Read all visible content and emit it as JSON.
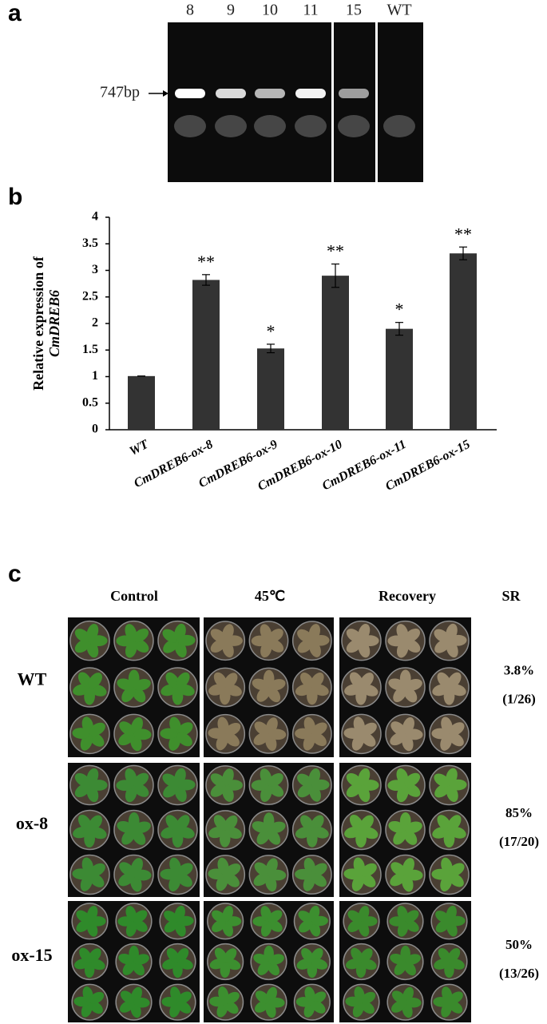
{
  "panel_a": {
    "label": "a",
    "lanes": [
      "8",
      "9",
      "10",
      "11",
      "15",
      "WT"
    ],
    "marker": "747bp"
  },
  "chart_data": {
    "type": "bar",
    "panel_label": "b",
    "ylabel": [
      "Relative expression of",
      "CmDREB6"
    ],
    "categories": [
      "WT",
      "CmDREB6-ox-8",
      "CmDREB6-ox-9",
      "CmDREB6-ox-10",
      "CmDREB6-ox-11",
      "CmDREB6-ox-15"
    ],
    "values": [
      1.01,
      2.82,
      1.53,
      2.9,
      1.9,
      3.32
    ],
    "errors": [
      0,
      0.1,
      0.08,
      0.22,
      0.12,
      0.12
    ],
    "value_annotations": [
      null,
      "**",
      "*",
      "**",
      "*",
      "**"
    ],
    "color": "#333333",
    "ylim": [
      0,
      4
    ],
    "yticks": [
      0,
      0.5,
      1,
      1.5,
      2,
      2.5,
      3,
      3.5,
      4
    ]
  },
  "panel_c": {
    "label": "c",
    "columns": [
      "Control",
      "45℃",
      "Recovery",
      "SR"
    ],
    "rows": [
      {
        "name": "WT",
        "sr": "3.8%",
        "ratio": "(1/26)"
      },
      {
        "name": "ox-8",
        "sr": "85%",
        "ratio": "(17/20)"
      },
      {
        "name": "ox-15",
        "sr": "50%",
        "ratio": "(13/26)"
      }
    ]
  }
}
